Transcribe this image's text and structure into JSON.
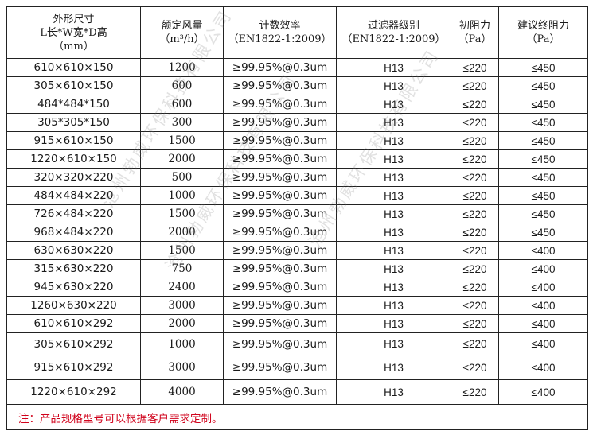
{
  "header": {
    "size_line1": "外形尺寸",
    "size_line2": "L长*W宽*D高",
    "size_line3": "（mm）",
    "airflow_line1": "额定风量",
    "airflow_line2": "（m³/h）",
    "efficiency_line1": "计数效率",
    "efficiency_line2": "（EN1822-1:2009）",
    "class_line1": "过滤器级别",
    "class_line2": "（EN1822-1:2009）",
    "initial_line1": "初阻力",
    "initial_line2": "（Pa）",
    "final_line1": "建议终阻力",
    "final_line2": "（Pa）"
  },
  "rows": [
    {
      "size": "610×610×150",
      "airflow": "1200",
      "efficiency": "≥99.95%@0.3um",
      "class": "H13",
      "initial": "≤220",
      "final": "≤450"
    },
    {
      "size": "305×610×150",
      "airflow": "600",
      "efficiency": "≥99.95%@0.3um",
      "class": "H13",
      "initial": "≤220",
      "final": "≤450"
    },
    {
      "size": "484*484*150",
      "airflow": "600",
      "efficiency": "≥99.95%@0.3um",
      "class": "H13",
      "initial": "≤220",
      "final": "≤450"
    },
    {
      "size": "305*305*150",
      "airflow": "300",
      "efficiency": "≥99.95%@0.3um",
      "class": "H13",
      "initial": "≤220",
      "final": "≤450"
    },
    {
      "size": "915×610×150",
      "airflow": "1500",
      "efficiency": "≥99.95%@0.3um",
      "class": "H13",
      "initial": "≤220",
      "final": "≤450"
    },
    {
      "size": "1220×610×150",
      "airflow": "2000",
      "efficiency": "≥99.95%@0.3um",
      "class": "H13",
      "initial": "≤220",
      "final": "≤450"
    },
    {
      "size": "320×320×220",
      "airflow": "500",
      "efficiency": "≥99.95%@0.3um",
      "class": "H13",
      "initial": "≤220",
      "final": "≤450"
    },
    {
      "size": "484×484×220",
      "airflow": "1000",
      "efficiency": "≥99.95%@0.3um",
      "class": "H13",
      "initial": "≤220",
      "final": "≤450"
    },
    {
      "size": "726×484×220",
      "airflow": "1500",
      "efficiency": "≥99.95%@0.3um",
      "class": "H13",
      "initial": "≤220",
      "final": "≤450"
    },
    {
      "size": "968×484×220",
      "airflow": "2000",
      "efficiency": "≥99.95%@0.3um",
      "class": "H13",
      "initial": "≤220",
      "final": "≤450"
    },
    {
      "size": "630×630×220",
      "airflow": "1500",
      "efficiency": "≥99.95%@0.3um",
      "class": "H13",
      "initial": "≤220",
      "final": "≤400"
    },
    {
      "size": "315×630×220",
      "airflow": "750",
      "efficiency": "≥99.95%@0.3um",
      "class": "H13",
      "initial": "≤220",
      "final": "≤400"
    },
    {
      "size": "945×630×220",
      "airflow": "2400",
      "efficiency": "≥99.95%@0.3um",
      "class": "H13",
      "initial": "≤220",
      "final": "≤400"
    },
    {
      "size": "1260×630×220",
      "airflow": "3000",
      "efficiency": "≥99.95%@0.3um",
      "class": "H13",
      "initial": "≤220",
      "final": "≤400"
    },
    {
      "size": "610×610×292",
      "airflow": "2000",
      "efficiency": "≥99.95%@0.3um",
      "class": "H13",
      "initial": "≤220",
      "final": "≤400"
    },
    {
      "size": "305×610×292",
      "airflow": "1000",
      "efficiency": "≥99.95%@0.3um",
      "class": "H13",
      "initial": "≤220",
      "final": "≤400"
    },
    {
      "size": "915×610×292",
      "airflow": "3000",
      "efficiency": "≥99.95%@0.3um",
      "class": "H13",
      "initial": "≤220",
      "final": "≤400"
    },
    {
      "size": "1220×610×292",
      "airflow": "4000",
      "efficiency": "≥99.95%@0.3um",
      "class": "H13",
      "initial": "≤220",
      "final": "≤400"
    }
  ],
  "footnote": "注：产品规格型号可以根据客户需求定制。",
  "watermark": "沧州勃威环保科技有限公司",
  "colors": {
    "footnote": "#d0021b",
    "border": "#222222"
  }
}
